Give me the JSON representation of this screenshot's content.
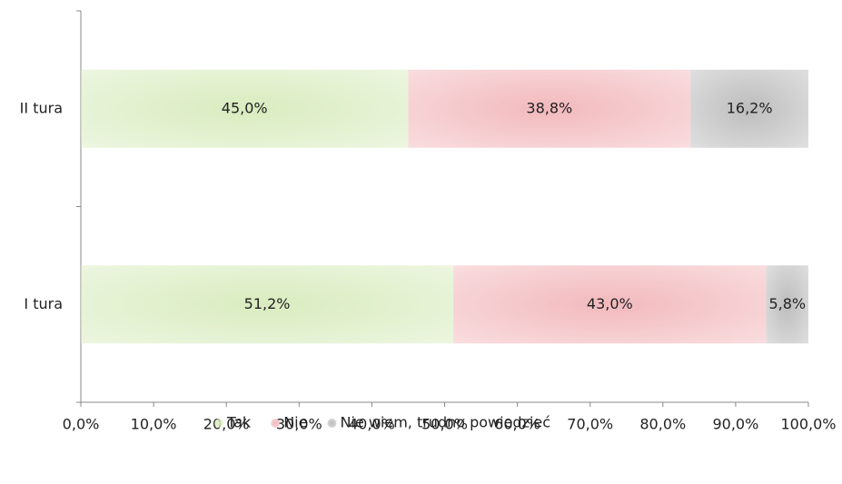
{
  "chart_data": {
    "type": "stacked-bar-horizontal",
    "categories": [
      "II tura",
      "I tura"
    ],
    "series": [
      {
        "name": "Tak",
        "color": "#d9ecbf",
        "values": [
          45.0,
          51.2
        ],
        "value_labels": [
          "45,0%",
          "51,2%"
        ]
      },
      {
        "name": "Nie",
        "color": "#f2b9bd",
        "values": [
          38.8,
          43.0
        ],
        "value_labels": [
          "38,8%",
          "43,0%"
        ]
      },
      {
        "name": "Nie wiem, trudno powiedzieć",
        "color": "#bdbdbd",
        "values": [
          16.2,
          5.8
        ],
        "value_labels": [
          "16,2%",
          "5,8%"
        ]
      }
    ],
    "xlim": [
      0,
      100
    ],
    "xticks": [
      {
        "value": 0,
        "label": "0,0%"
      },
      {
        "value": 10,
        "label": "10,0%"
      },
      {
        "value": 20,
        "label": "20,0%"
      },
      {
        "value": 30,
        "label": "30,0%"
      },
      {
        "value": 40,
        "label": "40,0%"
      },
      {
        "value": 50,
        "label": "50,0%"
      },
      {
        "value": 60,
        "label": "60,0%"
      },
      {
        "value": 70,
        "label": "70,0%"
      },
      {
        "value": 80,
        "label": "80,0%"
      },
      {
        "value": 90,
        "label": "90,0%"
      },
      {
        "value": 100,
        "label": "100,0%"
      }
    ],
    "legend": "bottom"
  }
}
